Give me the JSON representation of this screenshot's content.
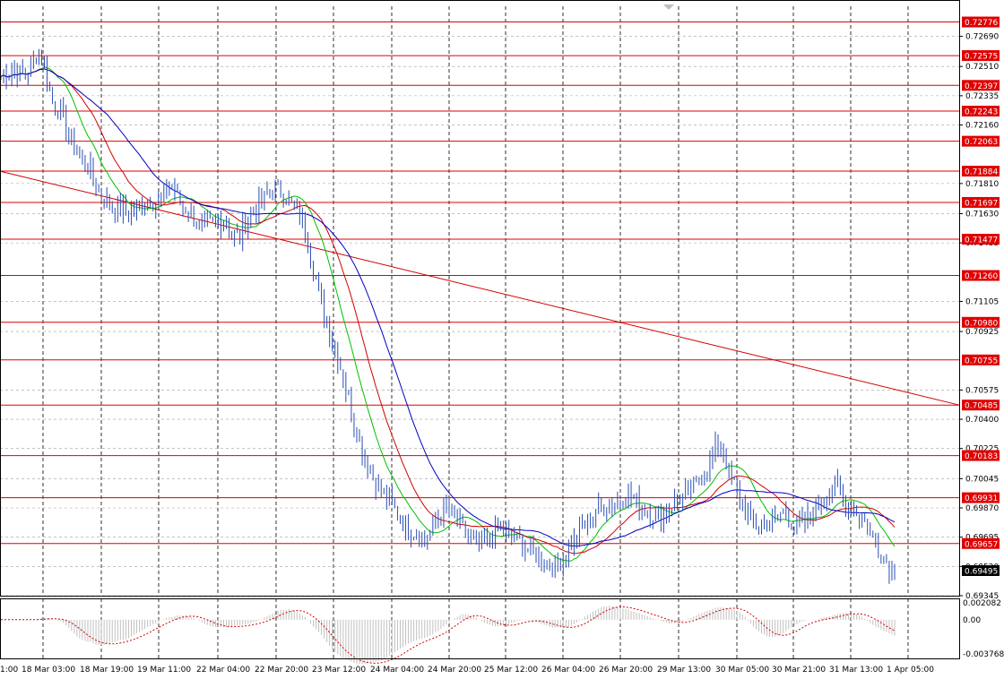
{
  "chart_data": {
    "type": "candlestick",
    "price_axis": {
      "ylim": [
        0.69345,
        0.7287
      ],
      "tick_labels": [
        "0.72690",
        "0.72510",
        "0.72335",
        "0.72160",
        "0.71810",
        "0.71630",
        "0.71455",
        "0.71105",
        "0.70925",
        "0.70575",
        "0.70400",
        "0.70225",
        "0.70045",
        "0.69870",
        "0.69695",
        "0.69520",
        "0.69345"
      ],
      "tick_values": [
        0.7269,
        0.7251,
        0.72335,
        0.7216,
        0.7181,
        0.7163,
        0.71455,
        0.71105,
        0.70925,
        0.70575,
        0.704,
        0.70225,
        0.70045,
        0.6987,
        0.69695,
        0.6952,
        0.69345
      ]
    },
    "time_axis": {
      "labels": [
        "1:00",
        "18 Mar 03:00",
        "18 Mar 19:00",
        "19 Mar 11:00",
        "22 Mar 04:00",
        "22 Mar 20:00",
        "23 Mar 12:00",
        "24 Mar 04:00",
        "24 Mar 20:00",
        "25 Mar 12:00",
        "26 Mar 04:00",
        "26 Mar 20:00",
        "29 Mar 13:00",
        "30 Mar 05:00",
        "30 Mar 21:00",
        "31 Mar 13:00",
        "1 Apr 05:00"
      ]
    },
    "horizontal_levels": [
      "0.72776",
      "0.72575",
      "0.72397",
      "0.72243",
      "0.72063",
      "0.71884",
      "0.71697",
      "0.71477",
      "0.71260",
      "0.70980",
      "0.70755",
      "0.70485",
      "0.70183",
      "0.69931",
      "0.69657"
    ],
    "current_price": "0.69495",
    "trendline": {
      "start": 0.71884,
      "end": 0.70485
    },
    "price_path": [
      0.7245,
      0.7248,
      0.725,
      0.7245,
      0.725,
      0.7262,
      0.725,
      0.7228,
      0.7226,
      0.721,
      0.7202,
      0.7195,
      0.719,
      0.7176,
      0.7172,
      0.7168,
      0.7165,
      0.7163,
      0.7165,
      0.717,
      0.7172,
      0.717,
      0.7175,
      0.718,
      0.717,
      0.7165,
      0.7162,
      0.7152,
      0.7156,
      0.7158,
      0.716,
      0.715,
      0.7148,
      0.716,
      0.7165,
      0.717,
      0.7175,
      0.7178,
      0.7175,
      0.7168,
      0.7165,
      0.715,
      0.713,
      0.711,
      0.7095,
      0.708,
      0.7065,
      0.7045,
      0.703,
      0.7015,
      0.7005,
      0.6998,
      0.6992,
      0.6985,
      0.6978,
      0.6974,
      0.697,
      0.6968,
      0.6975,
      0.6985,
      0.6988,
      0.698,
      0.6974,
      0.6968,
      0.6962,
      0.6966,
      0.697,
      0.6975,
      0.6972,
      0.6968,
      0.6965,
      0.6962,
      0.6958,
      0.6955,
      0.6952,
      0.6955,
      0.6962,
      0.6968,
      0.6975,
      0.698,
      0.6985,
      0.6988,
      0.699,
      0.6992,
      0.6995,
      0.6992,
      0.6988,
      0.6985,
      0.6982,
      0.6984,
      0.6988,
      0.6992,
      0.6996,
      0.7,
      0.7005,
      0.701,
      0.7025,
      0.702,
      0.7005,
      0.6995,
      0.6985,
      0.6978,
      0.6976,
      0.6978,
      0.698,
      0.6985,
      0.698,
      0.6975,
      0.6978,
      0.6985,
      0.699,
      0.6995,
      0.7,
      0.6992,
      0.6988,
      0.6984,
      0.6978,
      0.697,
      0.6962,
      0.6954,
      0.6949
    ],
    "oscillator": {
      "ylim": [
        -0.003768,
        0.002082
      ],
      "tick_labels": [
        "0.002082",
        "0.00",
        "-0.003768"
      ]
    },
    "colors": {
      "candle": "#2a4fb5",
      "level": "#e00000",
      "trendline": "#d00000",
      "ma_fast": "#00c000",
      "ma_mid": "#d00000",
      "ma_slow": "#0000c0",
      "grid": "#a0a0a0"
    }
  }
}
